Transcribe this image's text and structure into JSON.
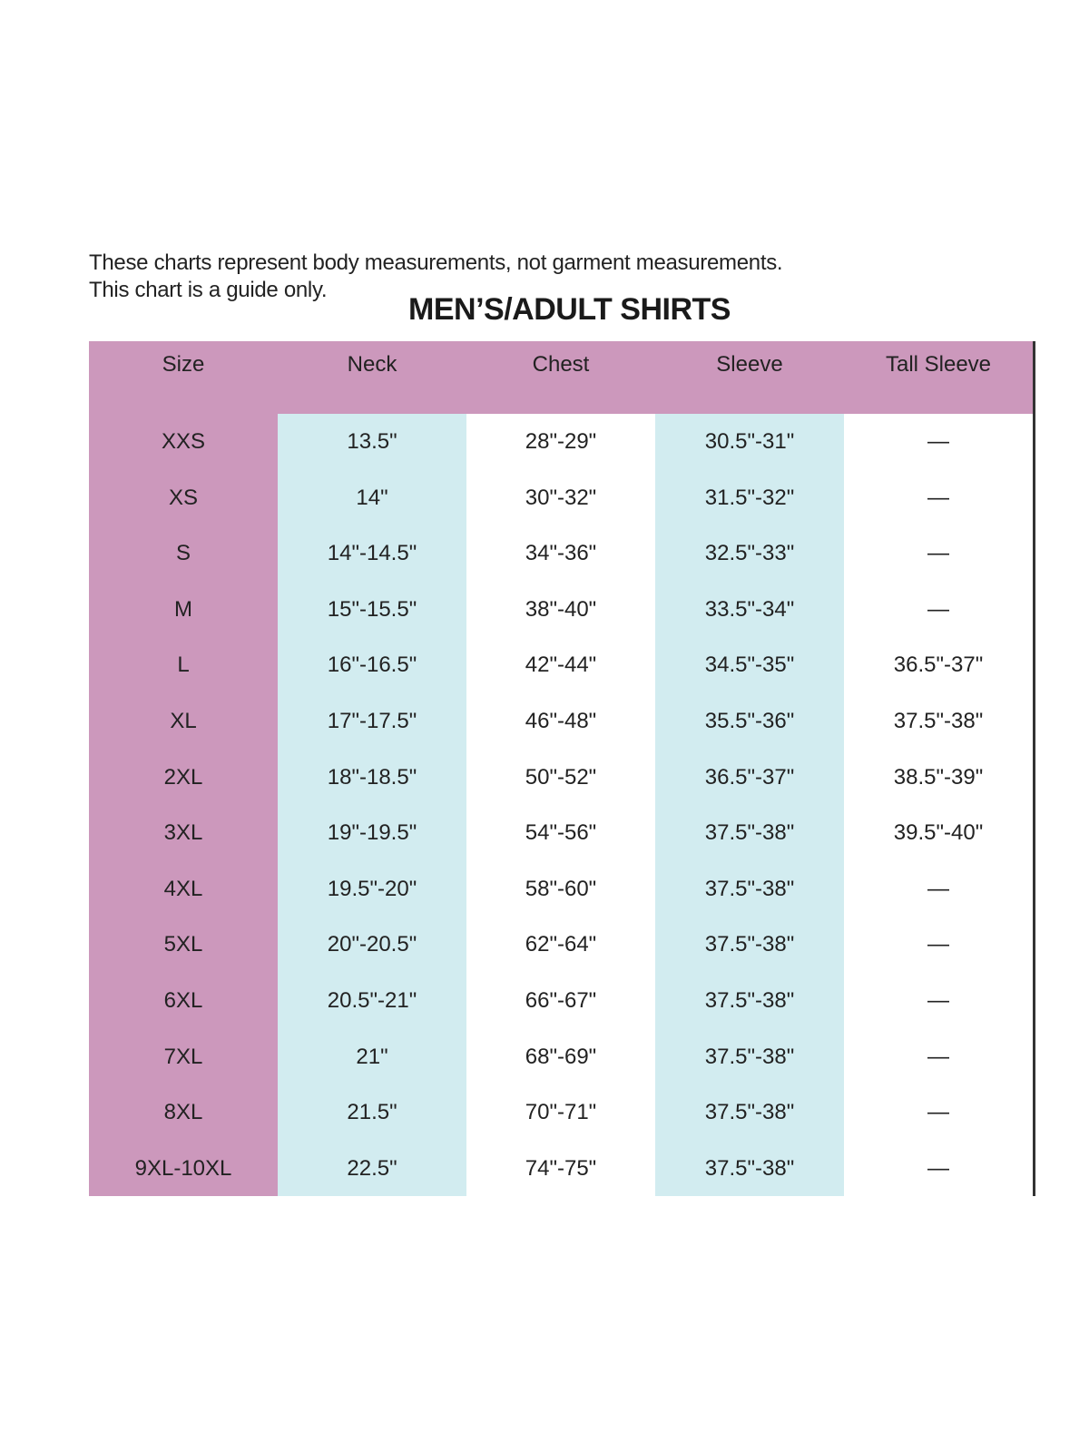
{
  "notes": [
    "These charts represent body measurements, not garment measurements.",
    "This chart is a guide only."
  ],
  "title": "MEN’S/ADULT SHIRTS",
  "colors": {
    "size_column": "#cc98bc",
    "header": "#cc98bc",
    "alt_column": "#d2ecf0"
  },
  "headers": [
    "Size",
    "Neck",
    "Chest",
    "Sleeve",
    "Tall Sleeve"
  ],
  "rows": [
    [
      "XXS",
      "13.5\"",
      "28\"-29\"",
      "30.5\"-31\"",
      "—"
    ],
    [
      "XS",
      "14\"",
      "30\"-32\"",
      "31.5\"-32\"",
      "—"
    ],
    [
      "S",
      "14\"-14.5\"",
      "34\"-36\"",
      "32.5\"-33\"",
      "—"
    ],
    [
      "M",
      "15\"-15.5\"",
      "38\"-40\"",
      "33.5\"-34\"",
      "—"
    ],
    [
      "L",
      "16\"-16.5\"",
      "42\"-44\"",
      "34.5\"-35\"",
      "36.5\"-37\""
    ],
    [
      "XL",
      "17\"-17.5\"",
      "46\"-48\"",
      "35.5\"-36\"",
      "37.5\"-38\""
    ],
    [
      "2XL",
      "18\"-18.5\"",
      "50\"-52\"",
      "36.5\"-37\"",
      "38.5\"-39\""
    ],
    [
      "3XL",
      "19\"-19.5\"",
      "54\"-56\"",
      "37.5\"-38\"",
      "39.5\"-40\""
    ],
    [
      "4XL",
      "19.5\"-20\"",
      "58\"-60\"",
      "37.5\"-38\"",
      "—"
    ],
    [
      "5XL",
      "20\"-20.5\"",
      "62\"-64\"",
      "37.5\"-38\"",
      "—"
    ],
    [
      "6XL",
      "20.5\"-21\"",
      "66\"-67\"",
      "37.5\"-38\"",
      "—"
    ],
    [
      "7XL",
      "21\"",
      "68\"-69\"",
      "37.5\"-38\"",
      "—"
    ],
    [
      "8XL",
      "21.5\"",
      "70\"-71\"",
      "37.5\"-38\"",
      "—"
    ],
    [
      "9XL-10XL",
      "22.5\"",
      "74\"-75\"",
      "37.5\"-38\"",
      "—"
    ]
  ]
}
